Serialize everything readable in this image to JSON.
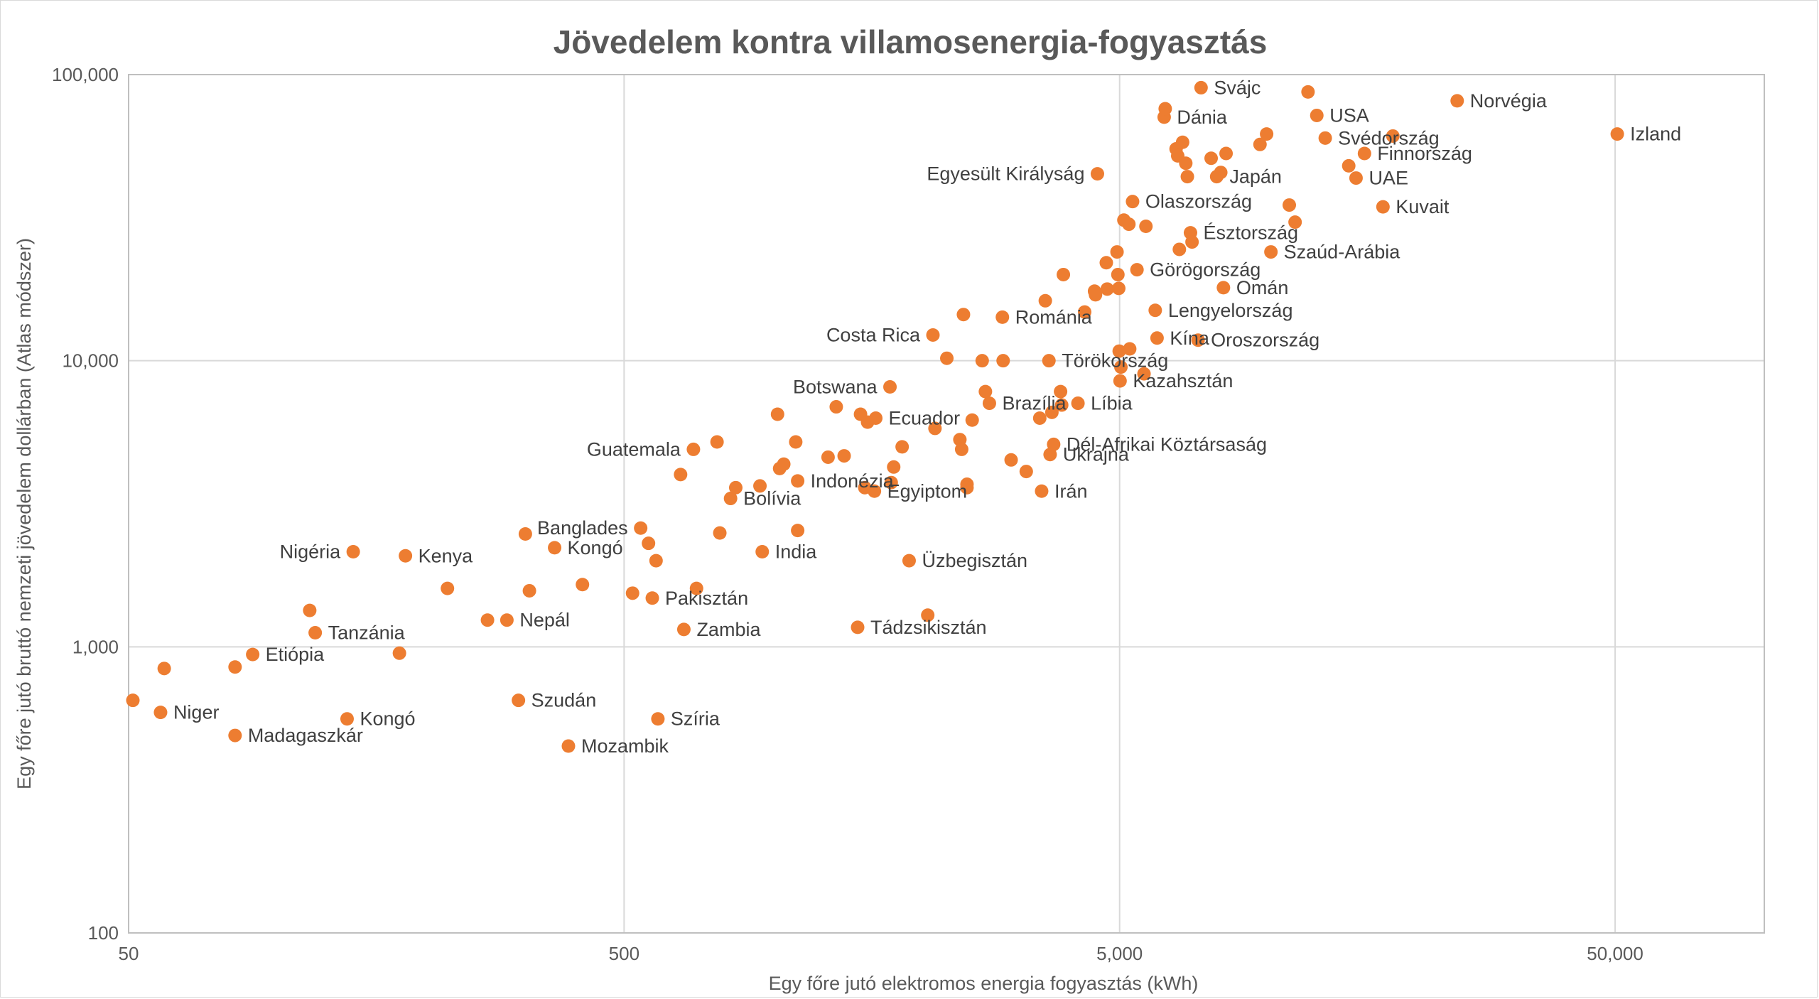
{
  "chart_data": {
    "type": "scatter",
    "title": "Jövedelem kontra villamosenergia-fogyasztás",
    "xlabel": "Egy főre jutó elektromos energia fogyasztás (kWh)",
    "ylabel": "Egy főre jutó bruttó nemzeti jövedelem dollárban (Atlas módszer)",
    "x_scale": "log",
    "y_scale": "log",
    "xlim": [
      50,
      100000
    ],
    "ylim": [
      100,
      100000
    ],
    "x_ticks": [
      {
        "value": 50,
        "label": "50"
      },
      {
        "value": 500,
        "label": "500"
      },
      {
        "value": 5000,
        "label": "5,000"
      },
      {
        "value": 50000,
        "label": "50,000"
      }
    ],
    "y_ticks": [
      {
        "value": 100,
        "label": "100"
      },
      {
        "value": 1000,
        "label": "1,000"
      },
      {
        "value": 10000,
        "label": "10,000"
      },
      {
        "value": 100000,
        "label": "100,000"
      }
    ],
    "grid": true,
    "marker_color": "#ED7D31",
    "points": [
      {
        "x": 51,
        "y": 650,
        "label": ""
      },
      {
        "x": 58,
        "y": 590,
        "label": "Niger"
      },
      {
        "x": 59,
        "y": 840,
        "label": ""
      },
      {
        "x": 82,
        "y": 490,
        "label": "Madagaszkár"
      },
      {
        "x": 82,
        "y": 850,
        "label": ""
      },
      {
        "x": 89,
        "y": 940,
        "label": "Etiópia"
      },
      {
        "x": 116,
        "y": 1340,
        "label": ""
      },
      {
        "x": 119,
        "y": 1120,
        "label": "Tanzánia"
      },
      {
        "x": 138,
        "y": 560,
        "label": "Kongó"
      },
      {
        "x": 142,
        "y": 2150,
        "label": "Nigéria"
      },
      {
        "x": 176,
        "y": 950,
        "label": ""
      },
      {
        "x": 181,
        "y": 2080,
        "label": "Kenya"
      },
      {
        "x": 220,
        "y": 1600,
        "label": ""
      },
      {
        "x": 265,
        "y": 1240,
        "label": ""
      },
      {
        "x": 290,
        "y": 1240,
        "label": "Nepál"
      },
      {
        "x": 306,
        "y": 650,
        "label": "Szudán"
      },
      {
        "x": 316,
        "y": 2480,
        "label": ""
      },
      {
        "x": 322,
        "y": 1570,
        "label": ""
      },
      {
        "x": 362,
        "y": 2220,
        "label": "Kongó"
      },
      {
        "x": 386,
        "y": 450,
        "label": "Mozambik"
      },
      {
        "x": 412,
        "y": 1650,
        "label": ""
      },
      {
        "x": 520,
        "y": 1540,
        "label": ""
      },
      {
        "x": 540,
        "y": 2600,
        "label": "Banglades"
      },
      {
        "x": 560,
        "y": 2300,
        "label": ""
      },
      {
        "x": 570,
        "y": 1480,
        "label": "Pakisztán"
      },
      {
        "x": 580,
        "y": 2000,
        "label": ""
      },
      {
        "x": 585,
        "y": 560,
        "label": "Szíria"
      },
      {
        "x": 650,
        "y": 4000,
        "label": ""
      },
      {
        "x": 660,
        "y": 1150,
        "label": "Zambia"
      },
      {
        "x": 690,
        "y": 4900,
        "label": "Guatemala"
      },
      {
        "x": 700,
        "y": 1600,
        "label": ""
      },
      {
        "x": 770,
        "y": 5200,
        "label": ""
      },
      {
        "x": 780,
        "y": 2500,
        "label": ""
      },
      {
        "x": 820,
        "y": 3300,
        "label": "Bolívia"
      },
      {
        "x": 840,
        "y": 3600,
        "label": ""
      },
      {
        "x": 940,
        "y": 3650,
        "label": ""
      },
      {
        "x": 950,
        "y": 2150,
        "label": "India"
      },
      {
        "x": 1020,
        "y": 6500,
        "label": ""
      },
      {
        "x": 1030,
        "y": 4200,
        "label": ""
      },
      {
        "x": 1050,
        "y": 4350,
        "label": ""
      },
      {
        "x": 1110,
        "y": 5200,
        "label": ""
      },
      {
        "x": 1120,
        "y": 3800,
        "label": "Indonézia"
      },
      {
        "x": 1120,
        "y": 2550,
        "label": ""
      },
      {
        "x": 1290,
        "y": 4600,
        "label": ""
      },
      {
        "x": 1340,
        "y": 6900,
        "label": ""
      },
      {
        "x": 1390,
        "y": 4650,
        "label": ""
      },
      {
        "x": 1480,
        "y": 1170,
        "label": "Tádzsikisztán"
      },
      {
        "x": 1500,
        "y": 6500,
        "label": ""
      },
      {
        "x": 1530,
        "y": 3600,
        "label": ""
      },
      {
        "x": 1550,
        "y": 6100,
        "label": ""
      },
      {
        "x": 1600,
        "y": 3500,
        "label": "Egyiptom"
      },
      {
        "x": 1610,
        "y": 6300,
        "label": "Ecuador"
      },
      {
        "x": 1720,
        "y": 8100,
        "label": "Botswana"
      },
      {
        "x": 1730,
        "y": 3750,
        "label": ""
      },
      {
        "x": 1750,
        "y": 4250,
        "label": ""
      },
      {
        "x": 1820,
        "y": 5000,
        "label": ""
      },
      {
        "x": 1880,
        "y": 2000,
        "label": "Üzbegisztán"
      },
      {
        "x": 2050,
        "y": 1290,
        "label": ""
      },
      {
        "x": 2100,
        "y": 12300,
        "label": "Costa Rica"
      },
      {
        "x": 2120,
        "y": 5800,
        "label": ""
      },
      {
        "x": 2240,
        "y": 10200,
        "label": ""
      },
      {
        "x": 2380,
        "y": 5300,
        "label": ""
      },
      {
        "x": 2400,
        "y": 4900,
        "label": ""
      },
      {
        "x": 2420,
        "y": 14500,
        "label": ""
      },
      {
        "x": 2460,
        "y": 3700,
        "label": ""
      },
      {
        "x": 2460,
        "y": 3600,
        "label": ""
      },
      {
        "x": 2520,
        "y": 6200,
        "label": ""
      },
      {
        "x": 2640,
        "y": 10000,
        "label": ""
      },
      {
        "x": 2680,
        "y": 7800,
        "label": ""
      },
      {
        "x": 2730,
        "y": 7100,
        "label": "Brazília"
      },
      {
        "x": 2900,
        "y": 14200,
        "label": "Románia"
      },
      {
        "x": 2910,
        "y": 10000,
        "label": ""
      },
      {
        "x": 3020,
        "y": 4500,
        "label": ""
      },
      {
        "x": 3240,
        "y": 4100,
        "label": ""
      },
      {
        "x": 3450,
        "y": 6300,
        "label": ""
      },
      {
        "x": 3480,
        "y": 3500,
        "label": "Irán"
      },
      {
        "x": 3540,
        "y": 16200,
        "label": ""
      },
      {
        "x": 3600,
        "y": 10000,
        "label": "Törökország"
      },
      {
        "x": 3620,
        "y": 4700,
        "label": "Ukrajna"
      },
      {
        "x": 3650,
        "y": 6600,
        "label": ""
      },
      {
        "x": 3680,
        "y": 5100,
        "label": "Dél-Afrikai Köztársaság"
      },
      {
        "x": 3800,
        "y": 7800,
        "label": ""
      },
      {
        "x": 3820,
        "y": 7000,
        "label": ""
      },
      {
        "x": 3850,
        "y": 20000,
        "label": ""
      },
      {
        "x": 4120,
        "y": 7100,
        "label": "Líbia"
      },
      {
        "x": 4250,
        "y": 14800,
        "label": ""
      },
      {
        "x": 4450,
        "y": 17500,
        "label": ""
      },
      {
        "x": 4470,
        "y": 17000,
        "label": ""
      },
      {
        "x": 4510,
        "y": 45000,
        "label": "Egyesült Királyság"
      },
      {
        "x": 4700,
        "y": 22000,
        "label": ""
      },
      {
        "x": 4720,
        "y": 17800,
        "label": ""
      },
      {
        "x": 4940,
        "y": 24000,
        "label": ""
      },
      {
        "x": 4960,
        "y": 20000,
        "label": ""
      },
      {
        "x": 4980,
        "y": 17900,
        "label": ""
      },
      {
        "x": 4990,
        "y": 10800,
        "label": ""
      },
      {
        "x": 5010,
        "y": 8500,
        "label": "Kazahsztán"
      },
      {
        "x": 5030,
        "y": 9500,
        "label": ""
      },
      {
        "x": 5100,
        "y": 31000,
        "label": ""
      },
      {
        "x": 5220,
        "y": 30000,
        "label": ""
      },
      {
        "x": 5240,
        "y": 11000,
        "label": ""
      },
      {
        "x": 5310,
        "y": 36000,
        "label": "Olaszország"
      },
      {
        "x": 5420,
        "y": 20800,
        "label": "Görögország"
      },
      {
        "x": 5600,
        "y": 9000,
        "label": ""
      },
      {
        "x": 5650,
        "y": 29500,
        "label": ""
      },
      {
        "x": 5900,
        "y": 15000,
        "label": "Lengyelország"
      },
      {
        "x": 5950,
        "y": 12000,
        "label": "Kína"
      },
      {
        "x": 6150,
        "y": 71000,
        "label": "Dánia"
      },
      {
        "x": 6180,
        "y": 76000,
        "label": ""
      },
      {
        "x": 6500,
        "y": 55000,
        "label": ""
      },
      {
        "x": 6550,
        "y": 52000,
        "label": ""
      },
      {
        "x": 6600,
        "y": 24500,
        "label": ""
      },
      {
        "x": 6700,
        "y": 58000,
        "label": ""
      },
      {
        "x": 6800,
        "y": 49000,
        "label": ""
      },
      {
        "x": 6850,
        "y": 44000,
        "label": ""
      },
      {
        "x": 6950,
        "y": 28000,
        "label": "Észtország"
      },
      {
        "x": 7000,
        "y": 26000,
        "label": ""
      },
      {
        "x": 7200,
        "y": 11800,
        "label": "Oroszország"
      },
      {
        "x": 7300,
        "y": 90000,
        "label": "Svájc"
      },
      {
        "x": 7650,
        "y": 51000,
        "label": ""
      },
      {
        "x": 7850,
        "y": 44000,
        "label": "Japán"
      },
      {
        "x": 8000,
        "y": 45500,
        "label": ""
      },
      {
        "x": 8100,
        "y": 18000,
        "label": "Omán"
      },
      {
        "x": 8200,
        "y": 53000,
        "label": ""
      },
      {
        "x": 9600,
        "y": 57000,
        "label": ""
      },
      {
        "x": 9900,
        "y": 62000,
        "label": ""
      },
      {
        "x": 10100,
        "y": 24000,
        "label": "Szaúd-Arábia"
      },
      {
        "x": 11000,
        "y": 35000,
        "label": ""
      },
      {
        "x": 11300,
        "y": 30500,
        "label": ""
      },
      {
        "x": 12000,
        "y": 87000,
        "label": ""
      },
      {
        "x": 12500,
        "y": 72000,
        "label": "USA"
      },
      {
        "x": 13000,
        "y": 60000,
        "label": "Svédország"
      },
      {
        "x": 14500,
        "y": 48000,
        "label": ""
      },
      {
        "x": 15000,
        "y": 43500,
        "label": "UAE"
      },
      {
        "x": 15600,
        "y": 53000,
        "label": "Finnország"
      },
      {
        "x": 17000,
        "y": 34500,
        "label": "Kuvait"
      },
      {
        "x": 17800,
        "y": 61000,
        "label": ""
      },
      {
        "x": 24000,
        "y": 81000,
        "label": "Norvégia"
      },
      {
        "x": 50500,
        "y": 62000,
        "label": "Izland"
      }
    ]
  }
}
